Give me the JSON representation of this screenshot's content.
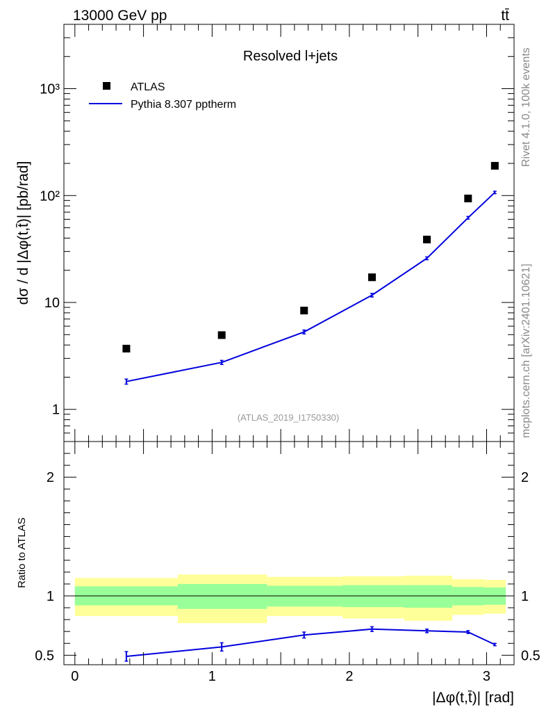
{
  "header": {
    "left": "13000 GeV pp",
    "right": "tt̄"
  },
  "side_labels": {
    "rivet": "Rivet 4.1.0,  100k events",
    "mcplots": "mcplots.cern.ch [arXiv:2401.10621]"
  },
  "chart_data": [
    {
      "type": "scatter",
      "panel": "main",
      "title": "Resolved l+jets",
      "watermark": "(ATLAS_2019_I1750330)",
      "ylabel": "dσ / d |Δφ(t,t̄)| [pb/rad]",
      "xlabel": "",
      "yscale": "log",
      "xlim": [
        -0.08,
        3.2
      ],
      "ylim": [
        0.5,
        4000
      ],
      "yticks": [
        {
          "value": 1,
          "label": "1"
        },
        {
          "value": 10,
          "label": "10"
        },
        {
          "value": 100,
          "label": "10²"
        },
        {
          "value": 1000,
          "label": "10³"
        }
      ],
      "legend": {
        "position": "top-left",
        "data_label": "ATLAS",
        "mc_label": "Pythia 8.307 pptherm"
      },
      "x": [
        0.375,
        1.07,
        1.67,
        2.165,
        2.565,
        2.865,
        3.06
      ],
      "data": [
        3.7,
        4.95,
        8.4,
        17.2,
        38.8,
        94,
        190
      ],
      "mc": [
        1.82,
        2.75,
        5.3,
        11.7,
        25.9,
        62,
        107
      ],
      "mc_err": [
        0.1,
        0.12,
        0.22,
        0.45,
        0.8,
        1.8,
        2.8
      ]
    },
    {
      "type": "line",
      "panel": "ratio",
      "ylabel": "Ratio to ATLAS",
      "xlabel": "|Δφ(t,t̄)| [rad]",
      "xlim": [
        -0.08,
        3.2
      ],
      "ylim": [
        0.42,
        2.3
      ],
      "yticks": [
        {
          "value": 0.5,
          "label": "0.5"
        },
        {
          "value": 1,
          "label": "1"
        },
        {
          "value": 2,
          "label": "2"
        }
      ],
      "xticks": [
        {
          "value": 0,
          "label": "0"
        },
        {
          "value": 1,
          "label": "1"
        },
        {
          "value": 2,
          "label": "2"
        },
        {
          "value": 3,
          "label": "3"
        }
      ],
      "bins": [
        {
          "lo": 0.0,
          "hi": 0.75,
          "stat_lo": 0.92,
          "stat_hi": 1.08,
          "tot_lo": 0.83,
          "tot_hi": 1.15
        },
        {
          "lo": 0.75,
          "hi": 1.4,
          "stat_lo": 0.89,
          "stat_hi": 1.1,
          "tot_lo": 0.77,
          "tot_hi": 1.18
        },
        {
          "lo": 1.4,
          "hi": 1.95,
          "stat_lo": 0.91,
          "stat_hi": 1.085,
          "tot_lo": 0.83,
          "tot_hi": 1.16
        },
        {
          "lo": 1.95,
          "hi": 2.4,
          "stat_lo": 0.905,
          "stat_hi": 1.09,
          "tot_lo": 0.81,
          "tot_hi": 1.165
        },
        {
          "lo": 2.4,
          "hi": 2.75,
          "stat_lo": 0.9,
          "stat_hi": 1.09,
          "tot_lo": 0.79,
          "tot_hi": 1.17
        },
        {
          "lo": 2.75,
          "hi": 2.98,
          "stat_lo": 0.92,
          "stat_hi": 1.075,
          "tot_lo": 0.84,
          "tot_hi": 1.14
        },
        {
          "lo": 2.98,
          "hi": 3.14,
          "stat_lo": 0.925,
          "stat_hi": 1.07,
          "tot_lo": 0.85,
          "tot_hi": 1.135
        }
      ],
      "x": [
        0.375,
        1.07,
        1.67,
        2.165,
        2.565,
        2.865,
        3.06
      ],
      "ratio": [
        0.49,
        0.57,
        0.67,
        0.72,
        0.705,
        0.695,
        0.59
      ],
      "ratio_err": [
        0.04,
        0.035,
        0.025,
        0.02,
        0.015,
        0.012,
        0.01
      ],
      "colors": {
        "mc": "#0000dd",
        "stat": "#99ff99",
        "total": "#ffff99"
      }
    }
  ]
}
